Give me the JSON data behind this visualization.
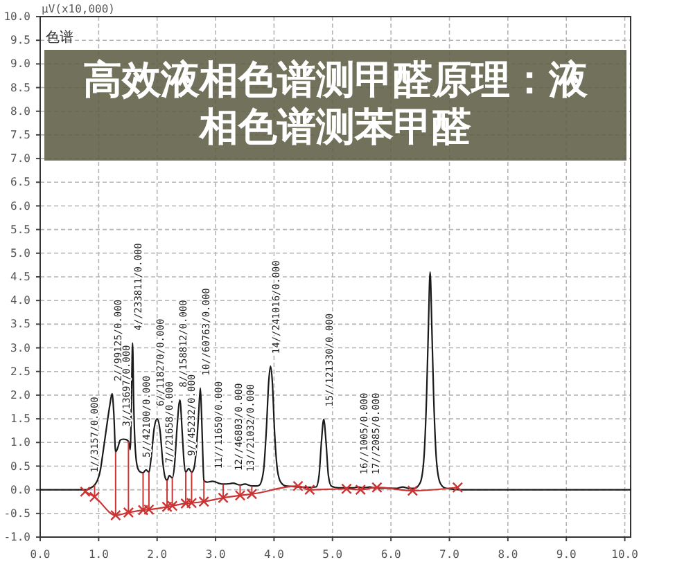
{
  "chart_data": {
    "type": "line",
    "title": "高效液相色谱测甲醛原理：液相色谱测苯甲醛",
    "ylabel": "μV(x10,000)",
    "annotations": [
      "色谱",
      {
        "text": "1//3157/0.000",
        "x": 0.93,
        "y": 0.1
      },
      {
        "text": "2//99125/0.000",
        "x": 1.23,
        "y": 2.03
      },
      {
        "text": "3//13697/0.000",
        "x": 1.42,
        "y": 1.07
      },
      {
        "text": "4//233811/0.000",
        "x": 1.58,
        "y": 3.1
      },
      {
        "text": "5//42100/0.000",
        "x": 1.81,
        "y": 0.42
      },
      {
        "text": "6//118270/0.000",
        "x": 2.0,
        "y": 1.5
      },
      {
        "text": "7//21658/0.000",
        "x": 2.21,
        "y": 0.3
      },
      {
        "text": "8//158812/0.000",
        "x": 2.39,
        "y": 1.9
      },
      {
        "text": "9//45232/0.000",
        "x": 2.54,
        "y": 0.45
      },
      {
        "text": "10//60763/0.000",
        "x": 2.74,
        "y": 2.15
      },
      {
        "text": "11//11650/0.000",
        "x": 2.95,
        "y": 0.18
      },
      {
        "text": "12//46803/0.000",
        "x": 3.3,
        "y": 0.14
      },
      {
        "text": "13//21032/0.000",
        "x": 3.5,
        "y": 0.12
      },
      {
        "text": "14//241016/0.000",
        "x": 3.94,
        "y": 2.61
      },
      {
        "text": "15//121330/0.000",
        "x": 4.85,
        "y": 1.49
      },
      {
        "text": "16//1005/0.000",
        "x": 5.44,
        "y": 0.06
      },
      {
        "text": "17//2085/0.000",
        "x": 5.64,
        "y": 0.06
      }
    ],
    "xlim": [
      0,
      10.1
    ],
    "ylim": [
      -1,
      10
    ],
    "xticks": [
      {
        "value": 0,
        "label": "0.0"
      },
      {
        "value": 1,
        "label": "1.0"
      },
      {
        "value": 2,
        "label": "2.0"
      },
      {
        "value": 3,
        "label": "3.0"
      },
      {
        "value": 4,
        "label": "4.0"
      },
      {
        "value": 5,
        "label": "5.0"
      },
      {
        "value": 6,
        "label": "6.0"
      },
      {
        "value": 7,
        "label": "7.0"
      },
      {
        "value": 8,
        "label": "8.0"
      },
      {
        "value": 9,
        "label": "9.0"
      },
      {
        "value": 10,
        "label": "10.0"
      }
    ],
    "yticks": [
      {
        "value": -1,
        "label": "-1.0"
      },
      {
        "value": -0.5,
        "label": "-0.5"
      },
      {
        "value": 0,
        "label": "0.0"
      },
      {
        "value": 0.5,
        "label": "0.5"
      },
      {
        "value": 1,
        "label": "1.0"
      },
      {
        "value": 1.5,
        "label": "1.5"
      },
      {
        "value": 2,
        "label": "2.0"
      },
      {
        "value": 2.5,
        "label": "2.5"
      },
      {
        "value": 3,
        "label": "3.0"
      },
      {
        "value": 3.5,
        "label": "3.5"
      },
      {
        "value": 4,
        "label": "4.0"
      },
      {
        "value": 4.5,
        "label": "4.5"
      },
      {
        "value": 5,
        "label": "5.0"
      },
      {
        "value": 5.5,
        "label": "5.5"
      },
      {
        "value": 6,
        "label": "6.0"
      },
      {
        "value": 6.5,
        "label": "6.5"
      },
      {
        "value": 7,
        "label": "7.0"
      },
      {
        "value": 7.5,
        "label": "7.5"
      },
      {
        "value": 8,
        "label": "8.0"
      },
      {
        "value": 8.5,
        "label": "8.5"
      },
      {
        "value": 9,
        "label": "9.0"
      },
      {
        "value": 9.5,
        "label": "9.5"
      },
      {
        "value": 10,
        "label": "10.0"
      }
    ],
    "grid": true,
    "series": [
      {
        "color": "#1a1a1a",
        "x": [
          0,
          0.8,
          0.85,
          0.93,
          0.98,
          1.03,
          1.07,
          1.11,
          1.15,
          1.19,
          1.23,
          1.26,
          1.29,
          1.33,
          1.37,
          1.42,
          1.47,
          1.51,
          1.54,
          1.56,
          1.58,
          1.6,
          1.63,
          1.67,
          1.72,
          1.76,
          1.81,
          1.86,
          1.9,
          1.95,
          2.0,
          2.05,
          2.1,
          2.14,
          2.17,
          2.21,
          2.26,
          2.3,
          2.34,
          2.39,
          2.43,
          2.46,
          2.49,
          2.54,
          2.59,
          2.63,
          2.67,
          2.71,
          2.74,
          2.76,
          2.78,
          2.8,
          2.85,
          2.95,
          3.05,
          3.13,
          3.25,
          3.3,
          3.42,
          3.5,
          3.62,
          3.7,
          3.75,
          3.82,
          3.87,
          3.91,
          3.94,
          3.97,
          4.01,
          4.06,
          4.12,
          4.2,
          4.3,
          4.6,
          4.72,
          4.77,
          4.81,
          4.85,
          4.89,
          4.93,
          4.98,
          5.1,
          5.35,
          5.44,
          5.52,
          5.64,
          5.72,
          6.1,
          6.2,
          6.3,
          6.4,
          6.5,
          6.56,
          6.61,
          6.64,
          6.67,
          6.7,
          6.73,
          6.78,
          6.84,
          6.92,
          7.0,
          7.2,
          10.1
        ],
        "values": [
          0,
          0,
          0.03,
          0.1,
          0.2,
          0.42,
          0.75,
          1.1,
          1.45,
          1.78,
          2.03,
          1.6,
          0.8,
          0.9,
          1.05,
          1.07,
          1.06,
          1.02,
          0.85,
          1.8,
          3.1,
          1.8,
          0.8,
          0.45,
          0.37,
          0.36,
          0.42,
          0.37,
          0.7,
          1.3,
          1.5,
          1.25,
          0.55,
          0.25,
          0.2,
          0.3,
          0.25,
          0.55,
          1.3,
          1.9,
          1.2,
          0.6,
          0.37,
          0.45,
          0.37,
          0.45,
          0.85,
          1.6,
          2.15,
          1.6,
          0.8,
          0.2,
          0.16,
          0.18,
          0.14,
          0.12,
          0.13,
          0.14,
          0.1,
          0.12,
          0.08,
          0.08,
          0.1,
          0.4,
          1.3,
          2.3,
          2.61,
          2.3,
          1.2,
          0.4,
          0.15,
          0.08,
          0.07,
          0.05,
          0.06,
          0.3,
          1.0,
          1.49,
          1.0,
          0.3,
          0.08,
          0.04,
          0.04,
          0.06,
          0.04,
          0.06,
          0.04,
          0.03,
          0.06,
          0.03,
          0.03,
          0.15,
          0.6,
          2.0,
          3.4,
          4.6,
          3.4,
          2.0,
          0.6,
          0.15,
          0.04,
          0.02,
          0,
          0
        ]
      },
      {
        "color": "#cc3333",
        "marker": "cross",
        "x": [
          0.77,
          0.93,
          1.29,
          1.51,
          1.76,
          1.86,
          2.17,
          2.26,
          2.49,
          2.59,
          2.8,
          3.13,
          3.42,
          3.62,
          4.41,
          4.61,
          5.24,
          5.48,
          5.76,
          6.37,
          7.14
        ],
        "values": [
          -0.04,
          -0.15,
          -0.54,
          -0.48,
          -0.43,
          -0.42,
          -0.36,
          -0.34,
          -0.29,
          -0.28,
          -0.25,
          -0.17,
          -0.12,
          -0.09,
          0.08,
          0,
          0.02,
          0,
          0.05,
          -0.02,
          0.05
        ],
        "errors": [
          null,
          [
            -0.15,
            0.1
          ],
          [
            -0.54,
            0.8
          ],
          [
            -0.48,
            1.02
          ],
          [
            -0.43,
            0.36
          ],
          [
            -0.42,
            0.37
          ],
          [
            -0.36,
            0.2
          ],
          [
            -0.34,
            0.25
          ],
          [
            -0.29,
            0.37
          ],
          [
            -0.28,
            0.37
          ],
          [
            -0.25,
            0.2
          ],
          [
            -0.17,
            0.12
          ],
          [
            -0.12,
            0.1
          ],
          [
            -0.09,
            0.08
          ],
          null,
          null,
          null,
          null,
          null,
          null,
          null
        ]
      }
    ]
  }
}
